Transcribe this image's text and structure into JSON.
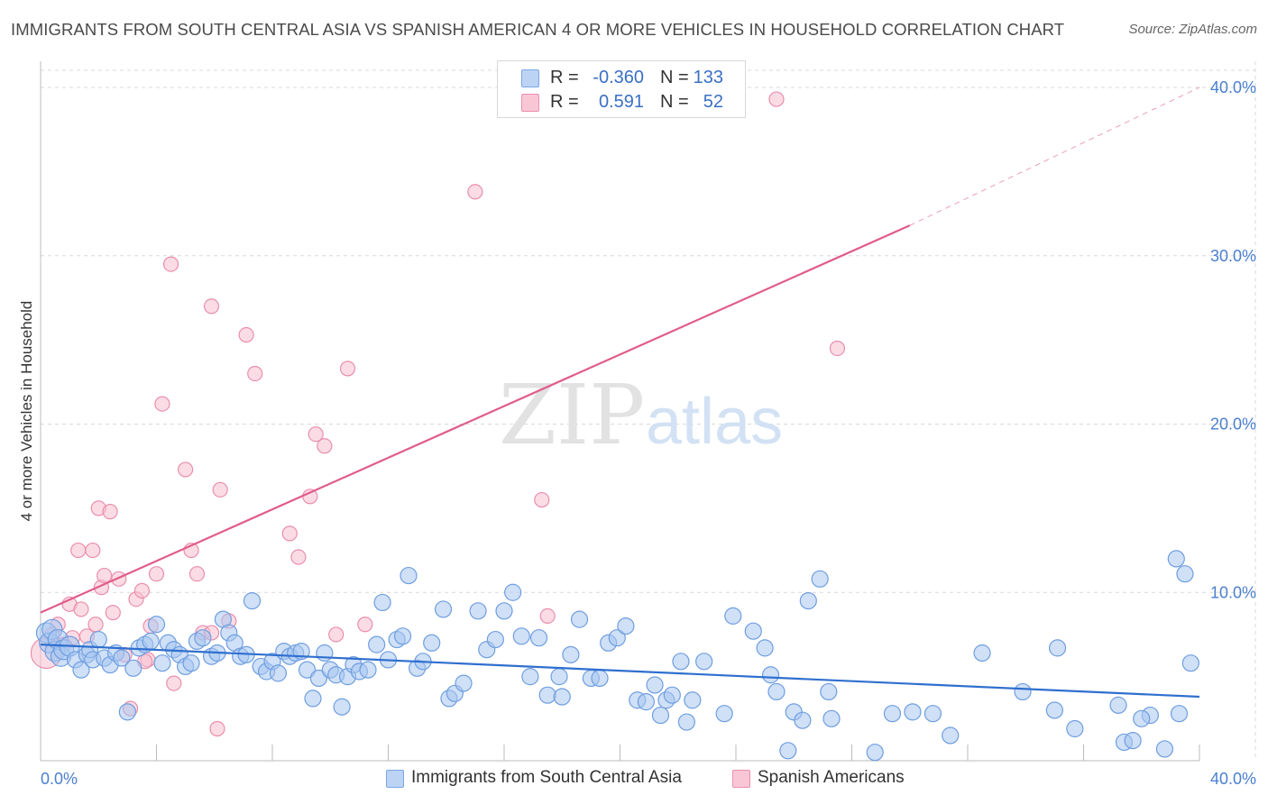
{
  "title": "IMMIGRANTS FROM SOUTH CENTRAL ASIA VS SPANISH AMERICAN 4 OR MORE VEHICLES IN HOUSEHOLD CORRELATION CHART",
  "source": "Source: ZipAtlas.com",
  "watermark": {
    "zip": "ZIP",
    "atlas": "atlas"
  },
  "legend": {
    "r_label": "R =",
    "n_label": "N =",
    "series": [
      {
        "name": "Immigrants from South Central Asia",
        "r": "-0.360",
        "n": "133",
        "fill": "#bcd3f4",
        "stroke": "#7aa6e6"
      },
      {
        "name": "Spanish Americans",
        "r": "0.591",
        "n": "52",
        "fill": "#f9c6d6",
        "stroke": "#ec8fae"
      }
    ]
  },
  "colors": {
    "blue_fill": "#a8c6f0",
    "blue_stroke": "#6f9ee0",
    "blue_line": "#2f6fcf",
    "pink_fill": "#f7bfd0",
    "pink_stroke": "#ea8eac",
    "pink_line": "#e05d8a",
    "grid": "#d9d9d9",
    "tick_text": "#4a7fcf"
  },
  "chart_data": {
    "type": "scatter",
    "title": "IMMIGRANTS FROM SOUTH CENTRAL ASIA VS SPANISH AMERICAN 4 OR MORE VEHICLES IN HOUSEHOLD CORRELATION CHART",
    "xlabel": "",
    "ylabel": "4 or more Vehicles in Household",
    "xlim": [
      0,
      40
    ],
    "ylim": [
      0,
      40
    ],
    "x_ticks": [
      "0.0%",
      "40.0%"
    ],
    "y_ticks": [
      {
        "value": 10,
        "label": "10.0%"
      },
      {
        "value": 20,
        "label": "20.0%"
      },
      {
        "value": 30,
        "label": "30.0%"
      },
      {
        "value": 40,
        "label": "40.0%"
      }
    ],
    "grid": true,
    "legend_position": "top-center",
    "series": [
      {
        "name": "Immigrants from South Central Asia",
        "r": -0.36,
        "n": 133,
        "trend": {
          "x0": 0,
          "y0": 6.9,
          "x1": 40,
          "y1": 3.8
        },
        "points": [
          [
            0.2,
            7.6
          ],
          [
            0.3,
            7.0
          ],
          [
            0.4,
            7.8
          ],
          [
            0.5,
            6.5
          ],
          [
            0.6,
            7.2
          ],
          [
            0.7,
            6.2
          ],
          [
            0.8,
            6.6
          ],
          [
            1.0,
            6.8
          ],
          [
            1.2,
            6.0
          ],
          [
            1.4,
            5.4
          ],
          [
            1.6,
            6.3
          ],
          [
            1.7,
            6.6
          ],
          [
            1.8,
            6.0
          ],
          [
            2.0,
            7.2
          ],
          [
            2.2,
            6.1
          ],
          [
            2.4,
            5.7
          ],
          [
            2.6,
            6.4
          ],
          [
            2.8,
            6.1
          ],
          [
            3.0,
            2.9
          ],
          [
            3.2,
            5.5
          ],
          [
            3.4,
            6.7
          ],
          [
            3.6,
            6.9
          ],
          [
            3.8,
            7.1
          ],
          [
            4.0,
            8.1
          ],
          [
            4.2,
            5.8
          ],
          [
            4.4,
            7.0
          ],
          [
            4.6,
            6.6
          ],
          [
            4.8,
            6.3
          ],
          [
            5.0,
            5.6
          ],
          [
            5.2,
            5.8
          ],
          [
            5.4,
            7.1
          ],
          [
            5.6,
            7.3
          ],
          [
            5.9,
            6.2
          ],
          [
            6.1,
            6.4
          ],
          [
            6.3,
            8.4
          ],
          [
            6.5,
            7.6
          ],
          [
            6.7,
            7.0
          ],
          [
            6.9,
            6.2
          ],
          [
            7.1,
            6.3
          ],
          [
            7.3,
            9.5
          ],
          [
            7.6,
            5.6
          ],
          [
            7.8,
            5.3
          ],
          [
            8.0,
            5.9
          ],
          [
            8.2,
            5.2
          ],
          [
            8.4,
            6.5
          ],
          [
            8.6,
            6.2
          ],
          [
            8.8,
            6.4
          ],
          [
            9.0,
            6.5
          ],
          [
            9.2,
            5.4
          ],
          [
            9.4,
            3.7
          ],
          [
            9.6,
            4.9
          ],
          [
            9.8,
            6.4
          ],
          [
            10.0,
            5.4
          ],
          [
            10.2,
            5.1
          ],
          [
            10.4,
            3.2
          ],
          [
            10.6,
            5.0
          ],
          [
            10.8,
            5.7
          ],
          [
            11.0,
            5.3
          ],
          [
            11.3,
            5.4
          ],
          [
            11.6,
            6.9
          ],
          [
            11.8,
            9.4
          ],
          [
            12.0,
            6.0
          ],
          [
            12.3,
            7.2
          ],
          [
            12.5,
            7.4
          ],
          [
            12.7,
            11.0
          ],
          [
            13.0,
            5.5
          ],
          [
            13.2,
            5.9
          ],
          [
            13.5,
            7.0
          ],
          [
            13.9,
            9.0
          ],
          [
            14.1,
            3.7
          ],
          [
            14.3,
            4.0
          ],
          [
            14.6,
            4.6
          ],
          [
            15.1,
            8.9
          ],
          [
            15.4,
            6.6
          ],
          [
            15.7,
            7.2
          ],
          [
            16.0,
            8.9
          ],
          [
            16.3,
            10.0
          ],
          [
            16.6,
            7.4
          ],
          [
            16.9,
            5.0
          ],
          [
            17.2,
            7.3
          ],
          [
            17.5,
            3.9
          ],
          [
            17.9,
            5.0
          ],
          [
            18.0,
            3.8
          ],
          [
            18.3,
            6.3
          ],
          [
            18.6,
            8.4
          ],
          [
            19.0,
            4.9
          ],
          [
            19.3,
            4.9
          ],
          [
            19.6,
            7.0
          ],
          [
            19.9,
            7.3
          ],
          [
            20.2,
            8.0
          ],
          [
            20.6,
            3.6
          ],
          [
            20.9,
            3.5
          ],
          [
            21.2,
            4.5
          ],
          [
            21.4,
            2.7
          ],
          [
            21.6,
            3.6
          ],
          [
            21.8,
            3.9
          ],
          [
            22.1,
            5.9
          ],
          [
            22.3,
            2.3
          ],
          [
            22.5,
            3.6
          ],
          [
            22.9,
            5.9
          ],
          [
            23.6,
            2.8
          ],
          [
            23.9,
            8.6
          ],
          [
            24.6,
            7.7
          ],
          [
            25.0,
            6.7
          ],
          [
            25.2,
            5.1
          ],
          [
            25.4,
            4.1
          ],
          [
            25.8,
            0.6
          ],
          [
            26.0,
            2.9
          ],
          [
            26.3,
            2.4
          ],
          [
            26.9,
            10.8
          ],
          [
            26.5,
            9.5
          ],
          [
            27.2,
            4.1
          ],
          [
            27.3,
            2.5
          ],
          [
            28.8,
            0.5
          ],
          [
            29.4,
            2.8
          ],
          [
            30.1,
            2.9
          ],
          [
            30.8,
            2.8
          ],
          [
            31.4,
            1.5
          ],
          [
            32.5,
            6.4
          ],
          [
            33.9,
            4.1
          ],
          [
            35.0,
            3.0
          ],
          [
            35.1,
            6.7
          ],
          [
            35.7,
            1.9
          ],
          [
            37.2,
            3.3
          ],
          [
            37.4,
            1.1
          ],
          [
            37.7,
            1.2
          ],
          [
            38.3,
            2.7
          ],
          [
            38.8,
            0.7
          ],
          [
            39.3,
            2.8
          ],
          [
            39.7,
            5.8
          ],
          [
            39.5,
            11.1
          ],
          [
            38.0,
            2.5
          ],
          [
            39.2,
            12.0
          ]
        ]
      },
      {
        "name": "Spanish Americans",
        "r": 0.591,
        "n": 52,
        "trend": {
          "x0": 0,
          "y0": 8.8,
          "x1": 30,
          "y1": 31.8,
          "dash_to_x": 40,
          "dash_to_y": 40.0
        },
        "points": [
          [
            0.2,
            6.4
          ],
          [
            0.4,
            7.5
          ],
          [
            0.6,
            8.1
          ],
          [
            0.8,
            6.9
          ],
          [
            1.0,
            9.3
          ],
          [
            1.1,
            7.3
          ],
          [
            1.3,
            12.5
          ],
          [
            1.4,
            9.0
          ],
          [
            1.6,
            7.4
          ],
          [
            1.8,
            12.5
          ],
          [
            1.9,
            8.1
          ],
          [
            2.0,
            15.0
          ],
          [
            2.1,
            10.3
          ],
          [
            2.2,
            11.0
          ],
          [
            2.4,
            14.8
          ],
          [
            2.5,
            8.8
          ],
          [
            2.7,
            10.8
          ],
          [
            2.9,
            6.3
          ],
          [
            3.1,
            3.1
          ],
          [
            3.3,
            9.6
          ],
          [
            3.5,
            10.1
          ],
          [
            3.7,
            6.0
          ],
          [
            3.8,
            8.0
          ],
          [
            4.0,
            11.1
          ],
          [
            4.2,
            21.2
          ],
          [
            4.5,
            29.5
          ],
          [
            4.6,
            4.6
          ],
          [
            5.0,
            17.3
          ],
          [
            5.2,
            12.5
          ],
          [
            5.4,
            11.1
          ],
          [
            5.6,
            7.6
          ],
          [
            5.9,
            7.6
          ],
          [
            5.9,
            27.0
          ],
          [
            6.1,
            1.9
          ],
          [
            6.2,
            16.1
          ],
          [
            6.5,
            8.3
          ],
          [
            7.1,
            25.3
          ],
          [
            7.4,
            23.0
          ],
          [
            8.6,
            13.5
          ],
          [
            8.9,
            12.1
          ],
          [
            9.3,
            15.7
          ],
          [
            9.5,
            19.4
          ],
          [
            9.8,
            18.7
          ],
          [
            10.6,
            23.3
          ],
          [
            11.2,
            8.1
          ],
          [
            10.2,
            7.5
          ],
          [
            15.0,
            33.8
          ],
          [
            17.3,
            15.5
          ],
          [
            17.5,
            8.6
          ],
          [
            25.4,
            39.3
          ],
          [
            27.5,
            24.5
          ],
          [
            3.6,
            5.9
          ]
        ]
      }
    ]
  }
}
